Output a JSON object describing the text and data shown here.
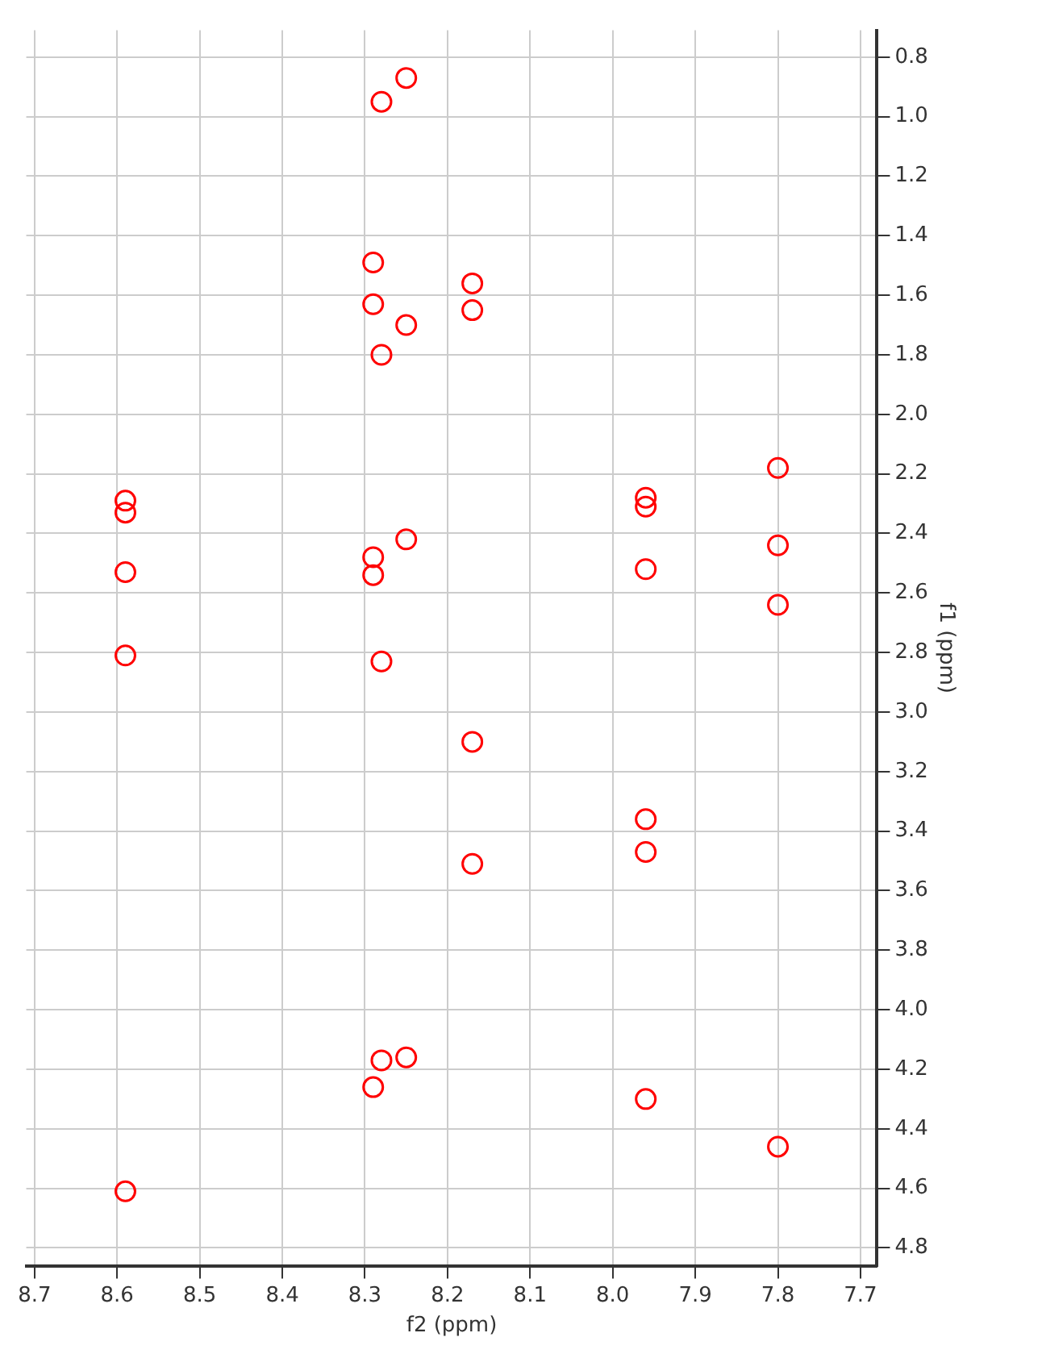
{
  "chart_data": {
    "type": "scatter",
    "xlabel": "f2 (ppm)",
    "ylabel": "f1 (ppm)",
    "xlim": [
      8.71,
      7.68
    ],
    "ylim": [
      4.86,
      0.71
    ],
    "xticks": [
      8.7,
      8.6,
      8.5,
      8.4,
      8.3,
      8.2,
      8.1,
      {
        "value": 8,
        "label": "8.0"
      },
      7.9,
      7.8,
      7.7
    ],
    "yticks": [
      0.8,
      {
        "value": 1,
        "label": "1.0"
      },
      1.2,
      1.4,
      1.6,
      1.8,
      {
        "value": 2,
        "label": "2.0"
      },
      2.2,
      2.4,
      2.6,
      2.8,
      {
        "value": 3,
        "label": "3.0"
      },
      3.2,
      3.4,
      3.6,
      3.8,
      {
        "value": 4,
        "label": "4.0"
      },
      4.2,
      4.4,
      4.6,
      4.8
    ],
    "grid": true,
    "legend": false,
    "marker": "circle",
    "series": [
      {
        "color": "#ff0000",
        "x": [
          8.25,
          8.28,
          8.29,
          8.29,
          8.17,
          8.17,
          8.25,
          8.28,
          7.8,
          8.59,
          8.59,
          7.96,
          7.96,
          8.25,
          8.29,
          8.29,
          7.8,
          8.59,
          7.96,
          7.8,
          8.59,
          8.28,
          8.17,
          7.96,
          7.96,
          8.17,
          8.29,
          8.28,
          8.25,
          7.96,
          7.8,
          8.59
        ],
        "values": [
          0.87,
          0.95,
          1.49,
          1.63,
          1.56,
          1.65,
          1.7,
          1.8,
          2.18,
          2.29,
          2.33,
          2.28,
          2.31,
          2.42,
          2.48,
          2.54,
          2.44,
          2.53,
          2.52,
          2.64,
          2.81,
          2.83,
          3.1,
          3.36,
          3.47,
          3.51,
          4.26,
          4.17,
          4.16,
          4.3,
          4.46,
          4.61
        ]
      }
    ]
  }
}
